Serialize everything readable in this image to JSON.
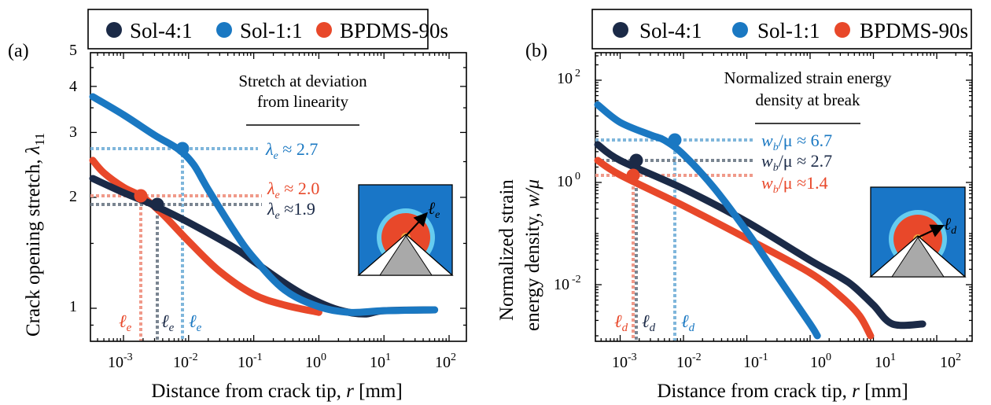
{
  "colors": {
    "sol41": "#1b2a47",
    "sol11": "#1a78c2",
    "bpdms": "#e8482a",
    "sol41_guide": "#7a8591",
    "sol11_guide": "#7fb6db",
    "bpdms_guide": "#f09a8a",
    "inset_bg": "#1976c7",
    "inset_ring": "#66ccef",
    "inset_disk": "#e8482a",
    "inset_tip": "#f2a541"
  },
  "panel_a": {
    "label": "(a)",
    "legend": [
      "Sol-4:1",
      "Sol-1:1",
      "BPDMS-90s"
    ],
    "ylabel_text": "Crack opening stretch, ",
    "ylabel_sym": "λ",
    "ylabel_sub": "11",
    "xlabel_text": "Distance from crack tip, ",
    "xlabel_sym": "r",
    "xlabel_unit": " [mm]",
    "annotation_line1": "Stretch at deviation",
    "annotation_line2": "from linearity",
    "callouts": [
      {
        "sym": "λ",
        "sub": "e",
        "text": " ≈ 2.7"
      },
      {
        "sym": "λ",
        "sub": "e",
        "text": " ≈ 2.0"
      },
      {
        "sym": "λ",
        "sub": "e",
        "text": " ≈1.9"
      }
    ],
    "length_labels": [
      {
        "sym": "ℓ",
        "sub": "e"
      },
      {
        "sym": "ℓ",
        "sub": "e"
      },
      {
        "sym": "ℓ",
        "sub": "e"
      }
    ],
    "inset_label": {
      "sym": "ℓ",
      "sub": "e"
    },
    "yticks": [
      "1",
      "2",
      "3",
      "4",
      "5"
    ],
    "xticks": [
      {
        "base": "10",
        "exp": "-3"
      },
      {
        "base": "10",
        "exp": "-2"
      },
      {
        "base": "10",
        "exp": "-1"
      },
      {
        "base": "10",
        "exp": "0"
      },
      {
        "base": "10",
        "exp": "1"
      },
      {
        "base": "10",
        "exp": "2"
      }
    ]
  },
  "panel_b": {
    "label": "(b)",
    "legend": [
      "Sol-4:1",
      "Sol-1:1",
      "BPDMS-90s"
    ],
    "ylabel_line1": "Normalized strain",
    "ylabel_line2_text": "energy density, ",
    "ylabel_sym": "w/μ",
    "xlabel_text": "Distance from crack tip, ",
    "xlabel_sym": "r",
    "xlabel_unit": " [mm]",
    "annotation_line1": "Normalized strain energy",
    "annotation_line2": "density at break",
    "callouts": [
      {
        "sym": "w",
        "sub": "b",
        "text": "/μ ≈ 6.7"
      },
      {
        "sym": "w",
        "sub": "b",
        "text": "/μ ≈ 2.7"
      },
      {
        "sym": "w",
        "sub": "b",
        "text": "/μ ≈1.4"
      }
    ],
    "length_labels": [
      {
        "sym": "ℓ",
        "sub": "d"
      },
      {
        "sym": "ℓ",
        "sub": "d"
      },
      {
        "sym": "ℓ",
        "sub": "d"
      }
    ],
    "inset_label": {
      "sym": "ℓ",
      "sub": "d"
    },
    "yticks": [
      {
        "base": "10",
        "exp": "-2"
      },
      {
        "base": "10",
        "exp": "0"
      },
      {
        "base": "10",
        "exp": "2"
      }
    ],
    "xticks": [
      {
        "base": "10",
        "exp": "-3"
      },
      {
        "base": "10",
        "exp": "-2"
      },
      {
        "base": "10",
        "exp": "-1"
      },
      {
        "base": "10",
        "exp": "0"
      },
      {
        "base": "10",
        "exp": "1"
      },
      {
        "base": "10",
        "exp": "2"
      }
    ]
  },
  "chart_data": [
    {
      "type": "scatter",
      "xlabel": "Distance from crack tip, r [mm]",
      "ylabel": "Crack opening stretch, λ11",
      "xscale": "log",
      "yscale": "log",
      "xlim": [
        0.0003,
        200
      ],
      "ylim": [
        0.83,
        5
      ],
      "legend_position": "top",
      "series": [
        {
          "name": "Sol-4:1",
          "x": [
            0.0003,
            0.001,
            0.002,
            0.003,
            0.01,
            0.05,
            0.1,
            0.3,
            0.7,
            2,
            5,
            10,
            60
          ],
          "y": [
            2.25,
            2.06,
            1.96,
            1.9,
            1.71,
            1.46,
            1.34,
            1.17,
            1.07,
            0.99,
            0.965,
            0.985,
            0.99
          ]
        },
        {
          "name": "Sol-1:1",
          "x": [
            0.0003,
            0.001,
            0.003,
            0.007,
            0.012,
            0.02,
            0.05,
            0.1,
            0.3,
            1,
            3,
            10,
            60
          ],
          "y": [
            3.75,
            3.35,
            2.95,
            2.7,
            2.45,
            2.1,
            1.62,
            1.37,
            1.12,
            1.01,
            0.975,
            0.985,
            0.99
          ]
        },
        {
          "name": "BPDMS-90s",
          "x": [
            0.0003,
            0.0005,
            0.001,
            0.002,
            0.004,
            0.01,
            0.03,
            0.1,
            0.3,
            1
          ],
          "y": [
            2.52,
            2.33,
            2.13,
            2.0,
            1.8,
            1.52,
            1.26,
            1.09,
            1.02,
            0.975
          ]
        }
      ],
      "markers": [
        {
          "series": "Sol-1:1",
          "x": 0.0075,
          "y": 2.7
        },
        {
          "series": "BPDMS-90s",
          "x": 0.0019,
          "y": 2.0
        },
        {
          "series": "Sol-4:1",
          "x": 0.0032,
          "y": 1.9
        }
      ],
      "annotations": [
        "Stretch at deviation from linearity",
        "λe ≈ 2.7",
        "λe ≈ 2.0",
        "λe ≈1.9"
      ],
      "grid": false
    },
    {
      "type": "scatter",
      "xlabel": "Distance from crack tip, r [mm]",
      "ylabel": "Normalized strain energy density, w/μ",
      "xscale": "log",
      "yscale": "log",
      "xlim": [
        0.0003,
        200
      ],
      "ylim": [
        0.001,
        400
      ],
      "legend_position": "top",
      "series": [
        {
          "name": "Sol-4:1",
          "x": [
            0.0003,
            0.001,
            0.01,
            0.1,
            1,
            3,
            5,
            10,
            20,
            60
          ],
          "y": [
            5.5,
            2.7,
            0.75,
            0.17,
            0.03,
            0.014,
            0.009,
            0.004,
            0.0017,
            0.0017
          ]
        },
        {
          "name": "Sol-1:1",
          "x": [
            0.0003,
            0.001,
            0.003,
            0.005,
            0.01,
            0.03,
            0.1,
            0.3,
            1,
            1.3
          ],
          "y": [
            33,
            15,
            8.5,
            6.7,
            3.5,
            0.8,
            0.11,
            0.015,
            0.0017,
            0.001
          ]
        },
        {
          "name": "BPDMS-90s",
          "x": [
            0.0003,
            0.001,
            0.01,
            0.1,
            1,
            3,
            6,
            9
          ],
          "y": [
            2.7,
            1.4,
            0.35,
            0.08,
            0.017,
            0.006,
            0.0025,
            0.001
          ]
        }
      ],
      "markers": [
        {
          "series": "Sol-1:1",
          "x": 0.005,
          "y": 6.7
        },
        {
          "series": "Sol-4:1",
          "x": 0.0011,
          "y": 2.7
        },
        {
          "series": "BPDMS-90s",
          "x": 0.0011,
          "y": 1.4
        }
      ],
      "annotations": [
        "Normalized strain energy density at break",
        "wb/μ ≈ 6.7",
        "wb/μ ≈ 2.7",
        "wb/μ ≈1.4"
      ],
      "grid": false
    }
  ]
}
